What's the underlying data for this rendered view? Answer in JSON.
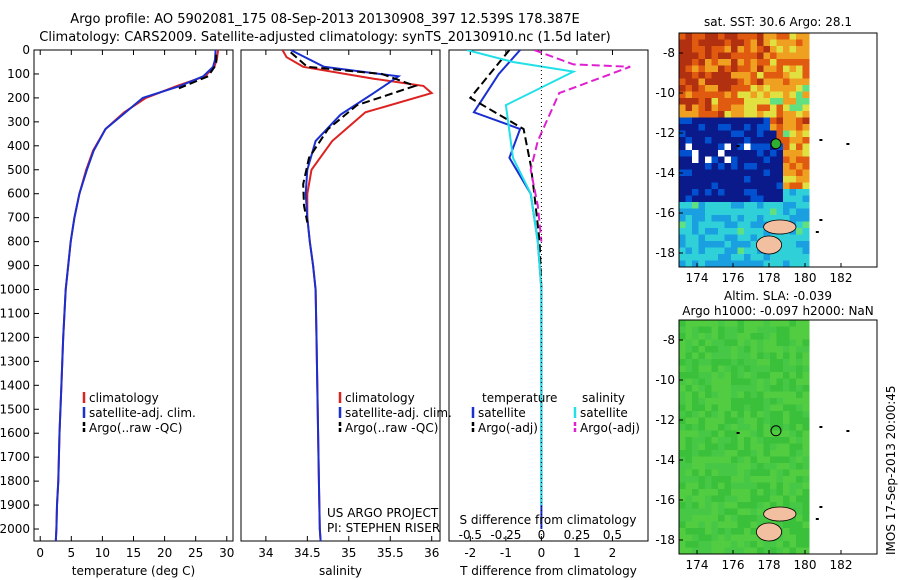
{
  "header": {
    "line1": "Argo profile: AO 5902081_175 08-Sep-2013 20130908_397 12.539S 178.387E",
    "line2": "Climatology: CARS2009. Satellite-adjusted climatology: synTS_20130910.nc (1.5d later)"
  },
  "colors": {
    "climatology": "#dd2222",
    "satellite": "#1a2fcf",
    "argo": "#000000",
    "sat_salinity": "#22e0e8",
    "argo_adj": "#e020d0"
  },
  "chart_data": [
    {
      "type": "line",
      "id": "temperature",
      "xlabel": "temperature (deg C)",
      "xlim": [
        -1,
        31
      ],
      "ylim": [
        2050,
        0
      ],
      "xticks": [
        0,
        5,
        10,
        15,
        20,
        25,
        30
      ],
      "yticks": [
        0,
        100,
        200,
        300,
        400,
        500,
        600,
        700,
        800,
        900,
        1000,
        1100,
        1200,
        1300,
        1400,
        1500,
        1600,
        1700,
        1800,
        1900,
        2000
      ],
      "legend": [
        "climatology",
        "satellite-adj. clim.",
        "Argo(..raw -QC)"
      ],
      "series": [
        {
          "name": "climatology",
          "color": "climatology",
          "x": [
            28.6,
            28.4,
            28.0,
            26.5,
            22,
            17,
            13.5,
            10.5,
            8.5,
            7.4,
            6.3,
            5.5,
            4.9,
            4.5,
            4.1,
            3.7,
            3.4,
            3.1,
            2.9,
            2.7,
            2.6,
            2.5
          ],
          "y": [
            0,
            40,
            70,
            110,
            150,
            200,
            260,
            330,
            420,
            500,
            600,
            700,
            800,
            900,
            1000,
            1200,
            1400,
            1600,
            1800,
            1900,
            2000,
            2050
          ]
        },
        {
          "name": "satellite-adj. clim.",
          "color": "satellite",
          "x": [
            28.2,
            28.1,
            27.8,
            26.2,
            22.5,
            16.5,
            14.2,
            10.5,
            8.6,
            7.5,
            6.3,
            5.5,
            4.9,
            4.5,
            4.1,
            3.7,
            3.4,
            3.1,
            2.9,
            2.7,
            2.6,
            2.5
          ],
          "y": [
            0,
            40,
            70,
            110,
            150,
            200,
            250,
            330,
            420,
            500,
            600,
            700,
            800,
            900,
            1000,
            1200,
            1400,
            1600,
            1800,
            1900,
            2000,
            2050
          ]
        },
        {
          "name": "Argo(..raw -QC)",
          "color": "argo",
          "x": [
            28.3,
            28.3,
            27.0,
            22.3
          ],
          "y": [
            20,
            60,
            110,
            160
          ]
        }
      ]
    },
    {
      "type": "line",
      "id": "salinity",
      "xlabel": "salinity",
      "xlim": [
        33.7,
        36.1
      ],
      "ylim": [
        2050,
        0
      ],
      "xticks": [
        34,
        34.5,
        35,
        35.5,
        36
      ],
      "legend": [
        "climatology",
        "satellite-adj. clim.",
        "Argo(..raw -QC)"
      ],
      "credit": [
        "US ARGO PROJECT",
        "PI: STEPHEN RISER"
      ],
      "series": [
        {
          "name": "climatology",
          "color": "climatology",
          "x": [
            34.2,
            34.25,
            34.45,
            35.3,
            35.9,
            36.0,
            35.2,
            34.8,
            34.55,
            34.5,
            34.5,
            34.53,
            34.57,
            34.6,
            34.61,
            34.62,
            34.63,
            34.64,
            34.65,
            34.66
          ],
          "y": [
            0,
            30,
            70,
            120,
            150,
            180,
            260,
            380,
            500,
            600,
            700,
            800,
            900,
            1000,
            1200,
            1400,
            1600,
            1800,
            2000,
            2050
          ]
        },
        {
          "name": "satellite-adj. clim.",
          "color": "satellite",
          "x": [
            34.3,
            34.7,
            35.6,
            35.3,
            34.9,
            34.6,
            34.5,
            34.48,
            34.5,
            34.53,
            34.57,
            34.6,
            34.61,
            34.62,
            34.63,
            34.64,
            34.65,
            34.66
          ],
          "y": [
            0,
            70,
            110,
            180,
            270,
            380,
            500,
            600,
            700,
            800,
            900,
            1000,
            1200,
            1400,
            1600,
            1800,
            2000,
            2050
          ]
        },
        {
          "name": "Argo(..raw -QC)",
          "color": "argo",
          "x": [
            34.3,
            34.5,
            35.4,
            35.8,
            35.1,
            34.75,
            34.52,
            34.45,
            34.46,
            34.5
          ],
          "y": [
            10,
            70,
            100,
            150,
            230,
            330,
            450,
            560,
            650,
            720
          ]
        }
      ]
    },
    {
      "type": "line",
      "id": "difference",
      "xlabel": "T difference from climatology",
      "xlabel2": "S difference from climatology",
      "xlim": [
        -2.6,
        3.0
      ],
      "ylim": [
        2050,
        0
      ],
      "xticks": [
        -2,
        -1,
        0,
        1,
        2
      ],
      "xticks2": [
        "-0.5",
        "-0.25",
        "0",
        "0.25",
        "0.5"
      ],
      "legend_headers": [
        "temperature",
        "salinity"
      ],
      "legend": [
        "satellite",
        "Argo(-adj)",
        "satellite",
        "Argo(-adj)"
      ],
      "series": [
        {
          "name": "satellite",
          "color": "satellite",
          "x": [
            -0.6,
            -1.2,
            -1.9,
            -0.6,
            -0.9,
            -0.3,
            -0.1,
            0,
            0,
            0,
            0
          ],
          "y": [
            0,
            100,
            260,
            330,
            450,
            600,
            800,
            1000,
            1400,
            1800,
            2000
          ]
        },
        {
          "name": "Argo(-adj)",
          "color": "argo",
          "x": [
            -0.9,
            -2.0,
            -0.5,
            -0.3,
            -0.2,
            -0.05,
            0,
            0,
            0
          ],
          "y": [
            0,
            200,
            330,
            480,
            600,
            800,
            1000,
            1500,
            1900
          ]
        },
        {
          "name": "satellite",
          "color": "sat_salinity",
          "x": [
            -2.1,
            -0.8,
            0.9,
            -1.0,
            -0.8,
            -0.3,
            -0.1,
            0,
            0
          ],
          "y": [
            0,
            50,
            90,
            230,
            450,
            600,
            800,
            1000,
            1900
          ]
        },
        {
          "name": "Argo(-adj)",
          "color": "argo_adj",
          "x": [
            -0.2,
            0.9,
            2.5,
            0.5,
            -0.1,
            -0.3,
            -0.1,
            0
          ],
          "y": [
            0,
            60,
            70,
            180,
            380,
            500,
            650,
            800
          ]
        }
      ]
    },
    {
      "type": "heatmap",
      "id": "sst-map",
      "title": "sat. SST: 30.6 Argo: 28.1",
      "xticks": [
        174,
        176,
        178,
        180,
        182
      ],
      "yticks": [
        -8,
        -10,
        -12,
        -14,
        -16,
        -18
      ],
      "xlim": [
        173,
        184
      ],
      "ylim": [
        -18.7,
        -7
      ]
    },
    {
      "type": "heatmap",
      "id": "sla-map",
      "title1": "Altim. SLA: -0.039",
      "title2": "Argo h1000: -0.097 h2000: NaN",
      "xticks": [
        174,
        176,
        178,
        180,
        182
      ],
      "yticks": [
        -8,
        -10,
        -12,
        -14,
        -16,
        -18
      ],
      "xlim": [
        173,
        184
      ],
      "ylim": [
        -18.7,
        -7
      ]
    }
  ],
  "side_text": "IMOS 17-Sep-2013 20:00:45"
}
